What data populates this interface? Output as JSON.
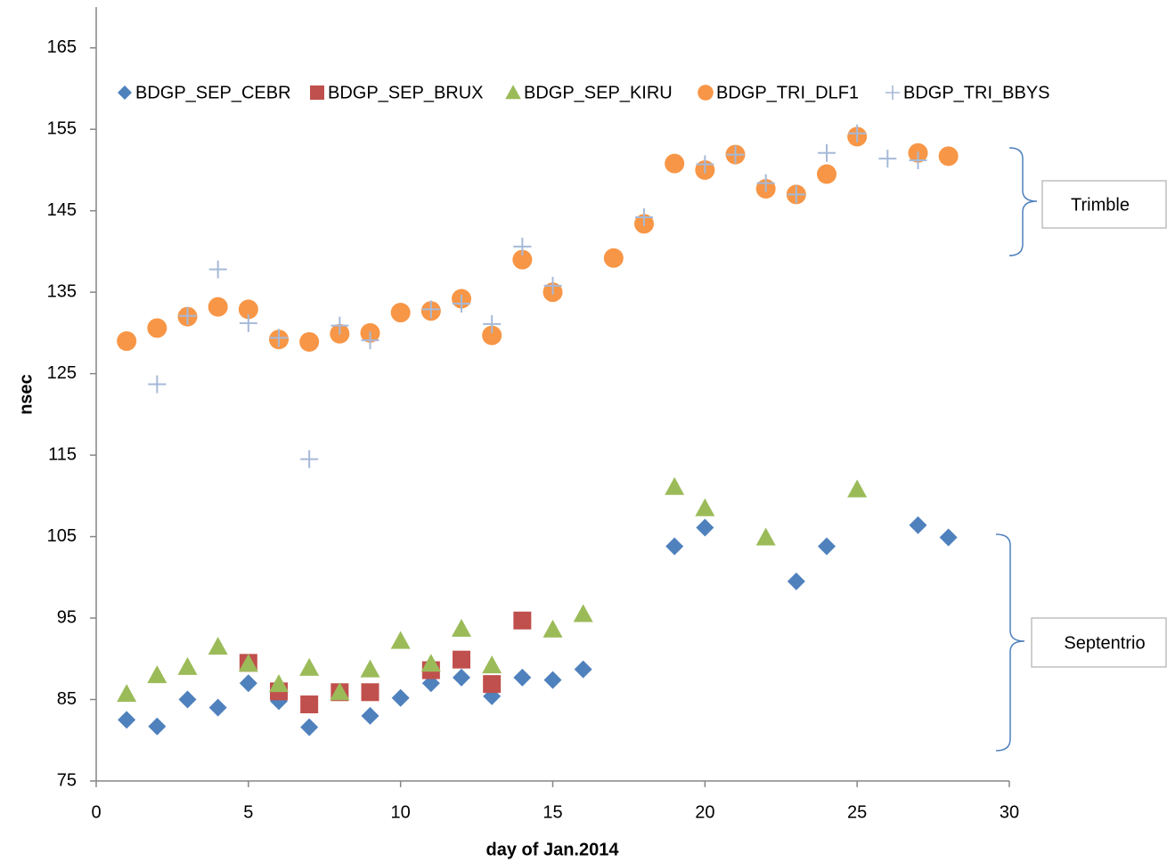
{
  "chart_data": {
    "type": "scatter",
    "x_label": "day of Jan.2014",
    "y_label": "nsec",
    "xlim": [
      0,
      30
    ],
    "xticks": [
      0,
      5,
      10,
      15,
      20,
      25,
      30
    ],
    "ylim": [
      75,
      170
    ],
    "yticks": [
      75,
      85,
      95,
      105,
      115,
      125,
      135,
      145,
      155,
      165
    ],
    "legend": "top",
    "annotations": [
      "Trimble",
      "Septentrio"
    ],
    "series": [
      {
        "name": "BDGP_SEP_CEBR",
        "color": "#4f81bd",
        "marker": "diamond",
        "x": [
          1,
          2,
          3,
          4,
          5,
          6,
          7,
          9,
          10,
          11,
          12,
          13,
          14,
          15,
          16,
          19,
          20,
          23,
          24,
          27,
          28
        ],
        "values": [
          82.5,
          81.7,
          85.0,
          84.0,
          87.0,
          84.8,
          81.6,
          83.0,
          85.2,
          87.0,
          87.7,
          85.4,
          87.7,
          87.4,
          88.7,
          103.8,
          106.1,
          99.5,
          103.8,
          106.4,
          104.9
        ]
      },
      {
        "name": "BDGP_SEP_BRUX",
        "color": "#c0504d",
        "marker": "square",
        "x": [
          5,
          6,
          7,
          8,
          9,
          11,
          12,
          13,
          14
        ],
        "values": [
          89.5,
          86.0,
          84.4,
          85.9,
          85.9,
          88.6,
          89.9,
          86.9,
          94.7
        ]
      },
      {
        "name": "BDGP_SEP_KIRU",
        "color": "#9bbb59",
        "marker": "triangle",
        "x": [
          1,
          2,
          3,
          4,
          5,
          6,
          7,
          8,
          9,
          10,
          11,
          12,
          13,
          15,
          16,
          19,
          20,
          22,
          25
        ],
        "values": [
          85.7,
          88.0,
          89.0,
          91.5,
          89.4,
          86.9,
          88.9,
          85.9,
          88.7,
          92.2,
          89.4,
          93.7,
          89.2,
          93.6,
          95.5,
          111.1,
          108.5,
          104.9,
          110.8
        ]
      },
      {
        "name": "BDGP_TRI_DLF1",
        "color": "#f79646",
        "marker": "circle",
        "x": [
          1,
          2,
          3,
          4,
          5,
          6,
          7,
          8,
          9,
          10,
          11,
          12,
          13,
          14,
          15,
          17,
          18,
          19,
          20,
          21,
          22,
          23,
          24,
          25,
          27,
          28
        ],
        "values": [
          129.0,
          130.6,
          132.0,
          133.2,
          132.9,
          129.2,
          128.9,
          129.9,
          130.0,
          132.5,
          132.7,
          134.2,
          129.7,
          139.0,
          135.0,
          139.2,
          143.4,
          150.8,
          150.0,
          151.9,
          147.7,
          147.0,
          149.5,
          154.1,
          152.1,
          151.7
        ]
      },
      {
        "name": "BDGP_TRI_BBYS",
        "color": "#a6b9d8",
        "marker": "plus",
        "x": [
          2,
          3,
          4,
          5,
          6,
          7,
          8,
          9,
          11,
          12,
          13,
          14,
          15,
          18,
          20,
          21,
          22,
          23,
          24,
          25,
          26,
          27
        ],
        "values": [
          123.7,
          132.1,
          137.8,
          131.2,
          129.4,
          114.5,
          130.9,
          129.1,
          132.9,
          133.6,
          131.1,
          140.6,
          135.8,
          144.2,
          150.7,
          151.9,
          148.4,
          147.0,
          152.1,
          154.5,
          151.4,
          151.2
        ]
      }
    ]
  }
}
